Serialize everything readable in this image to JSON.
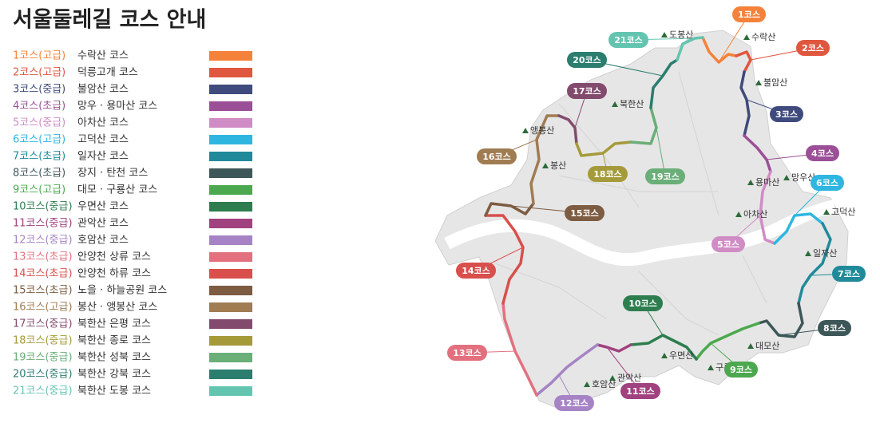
{
  "title": "서울둘레길 코스 안내",
  "courses": [
    {
      "label": "1코스(고급)",
      "name": "수락산 코스",
      "color": "#f5823a",
      "badge": "1코스"
    },
    {
      "label": "2코스(고급)",
      "name": "덕릉고개 코스",
      "color": "#e0573f",
      "badge": "2코스"
    },
    {
      "label": "3코스(중급)",
      "name": "불암산 코스",
      "color": "#3f4a7d",
      "badge": "3코스"
    },
    {
      "label": "4코스(초급)",
      "name": "망우 · 용마산 코스",
      "color": "#9b4f96",
      "badge": "4코스"
    },
    {
      "label": "5코스(중급)",
      "name": "아차산 코스",
      "color": "#d08cc4",
      "badge": "5코스"
    },
    {
      "label": "6코스(고급)",
      "name": "고덕산 코스",
      "color": "#2fb6e0",
      "badge": "6코스"
    },
    {
      "label": "7코스(초급)",
      "name": "일자산 코스",
      "color": "#208a9a",
      "badge": "7코스"
    },
    {
      "label": "8코스(초급)",
      "name": "장지 · 탄천 코스",
      "color": "#3d5758",
      "badge": "8코스"
    },
    {
      "label": "9코스(고급)",
      "name": "대모 · 구룡산 코스",
      "color": "#4ca84e",
      "badge": "9코스"
    },
    {
      "label": "10코스(중급)",
      "name": "우면산 코스",
      "color": "#2d7d4f",
      "badge": "10코스"
    },
    {
      "label": "11코스(중급)",
      "name": "관악산 코스",
      "color": "#a0427f",
      "badge": "11코스"
    },
    {
      "label": "12코스(중급)",
      "name": "호암산 코스",
      "color": "#a583c4",
      "badge": "12코스"
    },
    {
      "label": "13코스(초급)",
      "name": "안양천 상류 코스",
      "color": "#e2707e",
      "badge": "13코스"
    },
    {
      "label": "14코스(초급)",
      "name": "안양천 하류 코스",
      "color": "#d94f4c",
      "badge": "14코스"
    },
    {
      "label": "15코스(초급)",
      "name": "노을 · 하늘공원 코스",
      "color": "#7d5c42",
      "badge": "15코스"
    },
    {
      "label": "16코스(고급)",
      "name": "봉산 · 앵봉산 코스",
      "color": "#a07c52",
      "badge": "16코스"
    },
    {
      "label": "17코스(중급)",
      "name": "북한산 은평 코스",
      "color": "#824b6e",
      "badge": "17코스"
    },
    {
      "label": "18코스(중급)",
      "name": "북한산 종로 코스",
      "color": "#a59a3a",
      "badge": "18코스"
    },
    {
      "label": "19코스(중급)",
      "name": "북한산 성북 코스",
      "color": "#6aae78",
      "badge": "19코스"
    },
    {
      "label": "20코스(중급)",
      "name": "북한산 강북 코스",
      "color": "#2b7d6e",
      "badge": "20코스"
    },
    {
      "label": "21코스(중급)",
      "name": "북한산 도봉 코스",
      "color": "#63c5b0",
      "badge": "21코스"
    }
  ],
  "mountains": [
    "수락산",
    "도봉산",
    "불암산",
    "북한산",
    "앵봉산",
    "봉산",
    "망우산",
    "용마산",
    "아차산",
    "고덕산",
    "일자산",
    "대모산",
    "구룡산",
    "우면산",
    "관악산",
    "호암산"
  ]
}
